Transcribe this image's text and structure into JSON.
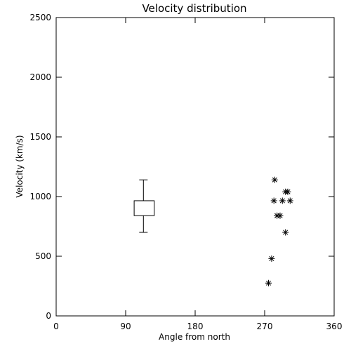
{
  "chart_data": {
    "type": "scatter",
    "title": "Velocity distribution",
    "xlabel": "Angle from north",
    "ylabel": "Velocity (km/s)",
    "xlim": [
      0,
      360
    ],
    "ylim": [
      0,
      2500
    ],
    "x_ticks": [
      0,
      90,
      180,
      270,
      360
    ],
    "y_ticks": [
      0,
      500,
      1000,
      1500,
      2000,
      2500
    ],
    "grid": false,
    "legend": "none",
    "boxplot": {
      "x": 113,
      "box_x_range": [
        101,
        127
      ],
      "whisker_low": 700,
      "q1": 840,
      "q3": 965,
      "whisker_high": 1140
    },
    "series": [
      {
        "marker": "asterisk",
        "points": [
          {
            "x": 283,
            "y": 1140
          },
          {
            "x": 282,
            "y": 965
          },
          {
            "x": 293,
            "y": 965
          },
          {
            "x": 303,
            "y": 965
          },
          {
            "x": 297,
            "y": 1040
          },
          {
            "x": 300,
            "y": 1040
          },
          {
            "x": 286,
            "y": 840
          },
          {
            "x": 290,
            "y": 840
          },
          {
            "x": 297,
            "y": 700
          },
          {
            "x": 279,
            "y": 480
          },
          {
            "x": 275,
            "y": 275
          }
        ]
      }
    ]
  }
}
